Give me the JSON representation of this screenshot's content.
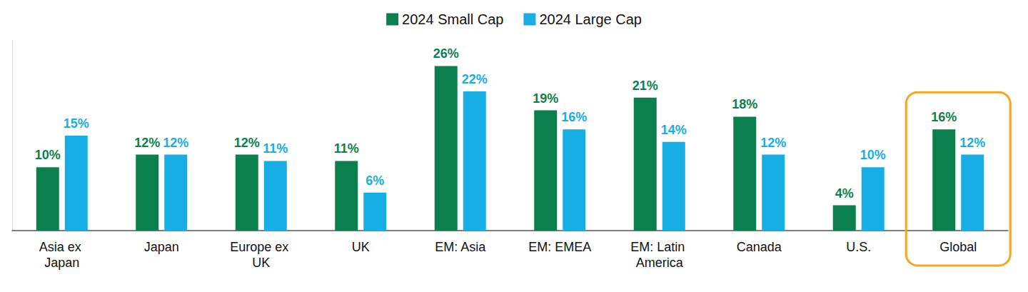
{
  "chart_data": {
    "type": "bar",
    "categories": [
      "Asia ex Japan",
      "Japan",
      "Europe ex UK",
      "UK",
      "EM: Asia",
      "EM: EMEA",
      "EM: Latin America",
      "Canada",
      "U.S.",
      "Global"
    ],
    "series": [
      {
        "name": "2024 Small Cap",
        "color": "#0B7F4E",
        "values": [
          10,
          12,
          12,
          11,
          26,
          19,
          21,
          18,
          4,
          16
        ],
        "value_labels": [
          "10%",
          "12%",
          "12%",
          "11%",
          "26%",
          "19%",
          "21%",
          "18%",
          "4%",
          "16%"
        ]
      },
      {
        "name": "2024 Large Cap",
        "color": "#17AEE6",
        "values": [
          15,
          12,
          11,
          6,
          22,
          16,
          14,
          12,
          10,
          12
        ],
        "value_labels": [
          "15%",
          "12%",
          "11%",
          "6%",
          "22%",
          "16%",
          "14%",
          "12%",
          "10%",
          "12%"
        ]
      }
    ],
    "ylim": [
      0,
      30
    ],
    "legend": "top",
    "data_labels": true,
    "tick_labels": "x",
    "grid": false
  }
}
